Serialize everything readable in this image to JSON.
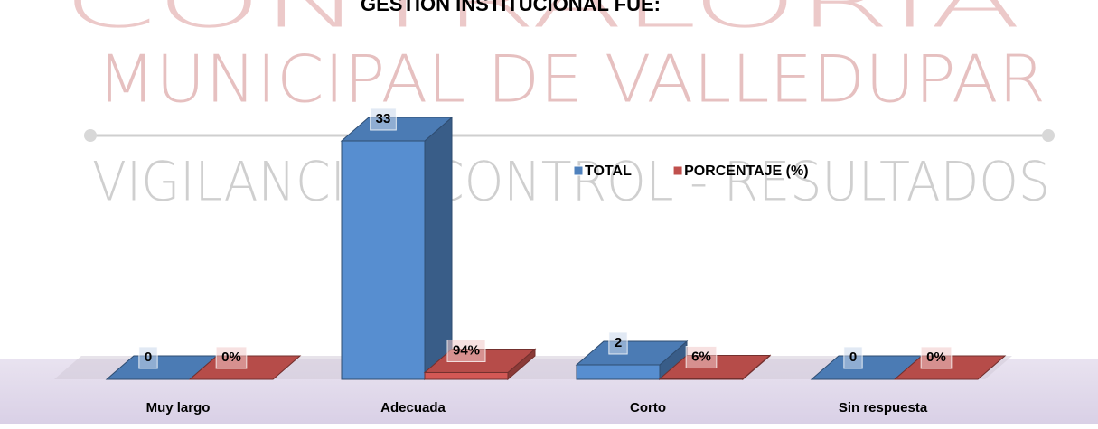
{
  "chart_data": {
    "type": "bar3d",
    "title": "GESTION INSTITUCIONAL FUE:",
    "watermark": [
      "CONTRALORIA",
      "MUNICIPAL DE VALLEDUPAR",
      "VIGILANCIA - CONTROL - RESULTADOS"
    ],
    "categories": [
      "Muy largo",
      "Adecuada",
      "Corto",
      "Sin respuesta"
    ],
    "series": [
      {
        "name": "TOTAL",
        "color": "#4f81bd",
        "values": [
          0,
          33,
          2,
          0
        ]
      },
      {
        "name": "PORCENTAJE (%)",
        "color": "#c0504d",
        "values": [
          0,
          0.94,
          0.06,
          0
        ],
        "value_labels": [
          "0%",
          "94%",
          "6%",
          "0%"
        ]
      }
    ],
    "ylim": [
      0,
      35
    ]
  }
}
